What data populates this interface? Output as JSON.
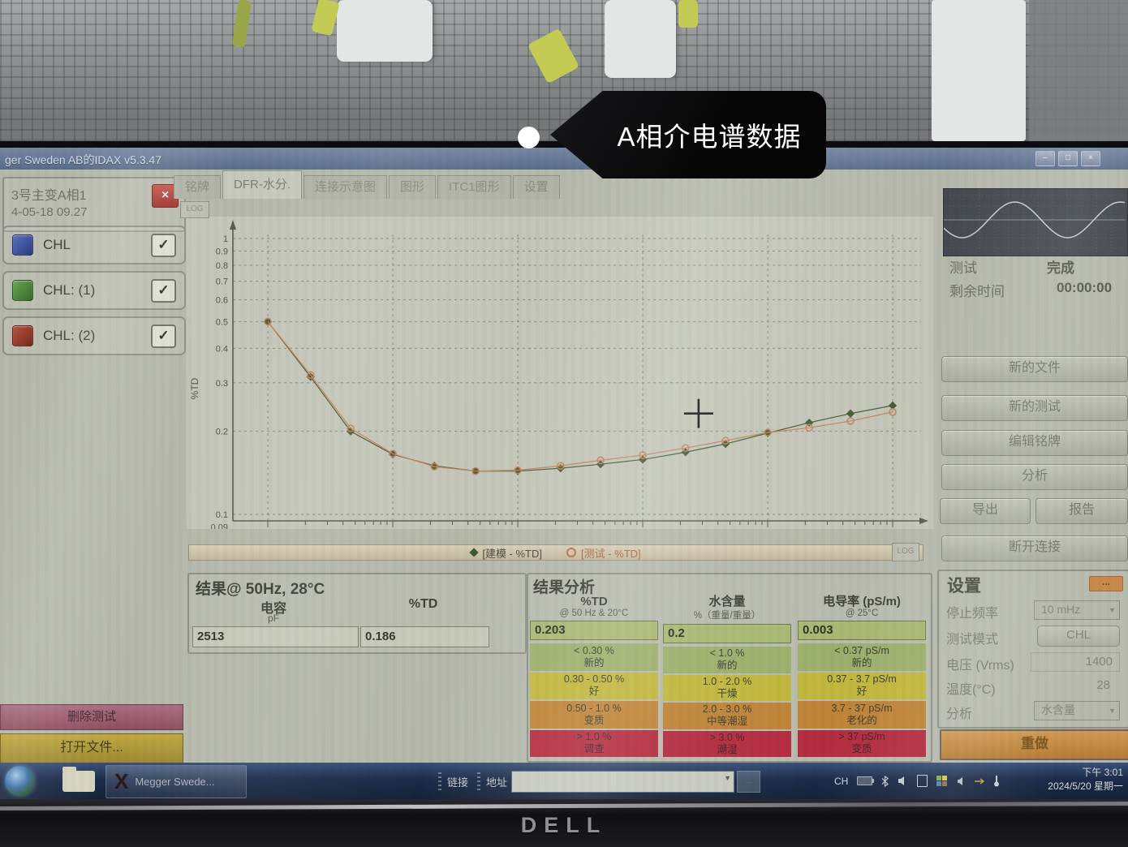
{
  "callout": {
    "text": "A相介电谱数据"
  },
  "window": {
    "title": "ger Sweden AB的IDAX v5.3.47"
  },
  "left_panel": {
    "test_name": "3号主变A相1",
    "test_date": "4-05-18 09.27",
    "channels": [
      {
        "label": "CHL",
        "color": "#3d55a0"
      },
      {
        "label": "CHL: (1)",
        "color": "#4f8a3c"
      },
      {
        "label": "CHL: (2)",
        "color": "#99372a"
      }
    ],
    "check_glyph": "✓",
    "close_glyph": "×",
    "delete_test": "删除测试",
    "open_file": "打开文件..."
  },
  "tabs": {
    "items": [
      {
        "label": "铭牌"
      },
      {
        "label": "DFR-水分."
      },
      {
        "label": "连接示意图"
      },
      {
        "label": "图形"
      },
      {
        "label": "ITC1图形"
      },
      {
        "label": "设置"
      }
    ],
    "active_index": 1
  },
  "chart_toolbar": {
    "log_button": "LOG"
  },
  "legend": {
    "model_label": "[建模 - %TD]",
    "test_label": "[测试 - %TD]",
    "log_button": "LOG"
  },
  "results": {
    "title": "结果@ 50Hz, 28°C",
    "capacitance_label": "电容",
    "capacitance_unit": "pF",
    "capacitance_value": "2513",
    "td_label": "%TD",
    "td_value": "0.186"
  },
  "analysis": {
    "title": "结果分析",
    "columns": [
      {
        "header": "%TD",
        "subheader": "@ 50 Hz & 20°C",
        "value": "0.203",
        "rows": [
          {
            "range": "< 0.30 %",
            "label": "新的"
          },
          {
            "range": "0.30 - 0.50 %",
            "label": "好"
          },
          {
            "range": "0.50 - 1.0 %",
            "label": "变质"
          },
          {
            "range": "> 1.0 %",
            "label": "调查"
          }
        ]
      },
      {
        "header": "水含量",
        "subheader": "%（重量/重量）",
        "value": "0.2",
        "rows": [
          {
            "range": "< 1.0 %",
            "label": "新的"
          },
          {
            "range": "1.0 - 2.0 %",
            "label": "干燥"
          },
          {
            "range": "2.0 - 3.0 %",
            "label": "中等潮湿"
          },
          {
            "range": "> 3.0 %",
            "label": "潮湿"
          }
        ]
      },
      {
        "header": "电导率 (pS/m)",
        "subheader": "@ 25°C",
        "value": "0.003",
        "rows": [
          {
            "range": "< 0.37 pS/m",
            "label": "新的"
          },
          {
            "range": "0.37 - 3.7 pS/m",
            "label": "好"
          },
          {
            "range": "3.7 - 37 pS/m",
            "label": "老化的"
          },
          {
            "range": "> 37 pS/m",
            "label": "变质"
          }
        ]
      }
    ],
    "level_colors": [
      "#9cb06c",
      "#c1b73c",
      "#bf8437",
      "#b42c40"
    ]
  },
  "right_panel": {
    "test_label": "测试",
    "test_status": "完成",
    "remaining_label": "剩余时间",
    "remaining_time": "00:00:00",
    "buttons": {
      "new_file": "新的文件",
      "new_test": "新的测试",
      "edit_nameplate": "编辑铭牌",
      "analyze": "分析",
      "export": "导出",
      "report": "报告",
      "disconnect": "断开连接"
    },
    "settings": {
      "title": "设置",
      "more_button": "...",
      "stop_freq_label": "停止频率",
      "stop_freq_value": "10 mHz",
      "test_mode_label": "测试模式",
      "test_mode_value": "CHL",
      "voltage_label": "电压 (Vrms)",
      "voltage_value": "1400",
      "temp_label": "温度(°C)",
      "temp_value": "28",
      "analysis_label": "分析",
      "analysis_value": "水含量"
    },
    "redo_button": "重做"
  },
  "taskbar": {
    "app_button": "Megger Swede...",
    "links_label": "链接",
    "address_label": "地址",
    "tray_lang": "CH",
    "time": "下午 3:01",
    "date": "2024/5/20 星期一"
  },
  "laptop": {
    "brand": "DELL"
  },
  "chart_data": {
    "type": "line",
    "title": "",
    "xlabel": "",
    "ylabel": "%TD",
    "x_scale": "log",
    "y_scale": "log",
    "xlim": [
      0.008,
      1400
    ],
    "ylim": [
      0.09,
      1.2
    ],
    "grid": true,
    "legend_position": "bottom",
    "x_tick_labels": [
      "10 mHz",
      "100 mHz",
      "1 Hz",
      "10 Hz",
      "100 Hz",
      "1 kHz"
    ],
    "x_tick_values": [
      0.01,
      0.1,
      1,
      10,
      100,
      1000
    ],
    "y_tick_labels": [
      "1",
      "0.9",
      "0.8",
      "0.7",
      "0.6",
      "0.5",
      "0.4",
      "0.3",
      "0.2",
      "0.1",
      "0.09"
    ],
    "y_tick_values": [
      1,
      0.9,
      0.8,
      0.7,
      0.6,
      0.5,
      0.4,
      0.3,
      0.2,
      0.1,
      0.09
    ],
    "y_grid_values": [
      1,
      0.9,
      0.8,
      0.7,
      0.6,
      0.5,
      0.4,
      0.3,
      0.2,
      0.1
    ],
    "series": [
      {
        "name": "建模 - %TD",
        "color": "#46603a",
        "marker": "diamond",
        "x": [
          0.01,
          0.022,
          0.046,
          0.1,
          0.215,
          0.46,
          1,
          2.2,
          4.6,
          10,
          22,
          46,
          100,
          215,
          460,
          1000
        ],
        "y": [
          0.5,
          0.315,
          0.2,
          0.165,
          0.15,
          0.1435,
          0.1435,
          0.147,
          0.152,
          0.158,
          0.168,
          0.18,
          0.197,
          0.215,
          0.232,
          0.248
        ]
      },
      {
        "name": "测试 - %TD",
        "color": "#c5825f",
        "marker": "circle",
        "x": [
          0.01,
          0.022,
          0.046,
          0.1,
          0.215,
          0.46,
          1,
          2.2,
          4.6,
          10,
          22,
          46,
          100,
          215,
          460,
          1000
        ],
        "y": [
          0.5,
          0.32,
          0.205,
          0.166,
          0.149,
          0.1435,
          0.1445,
          0.15,
          0.157,
          0.164,
          0.174,
          0.185,
          0.198,
          0.206,
          0.218,
          0.235
        ]
      }
    ],
    "cursor": {
      "x_hz": 28,
      "y_td": 0.232
    }
  }
}
